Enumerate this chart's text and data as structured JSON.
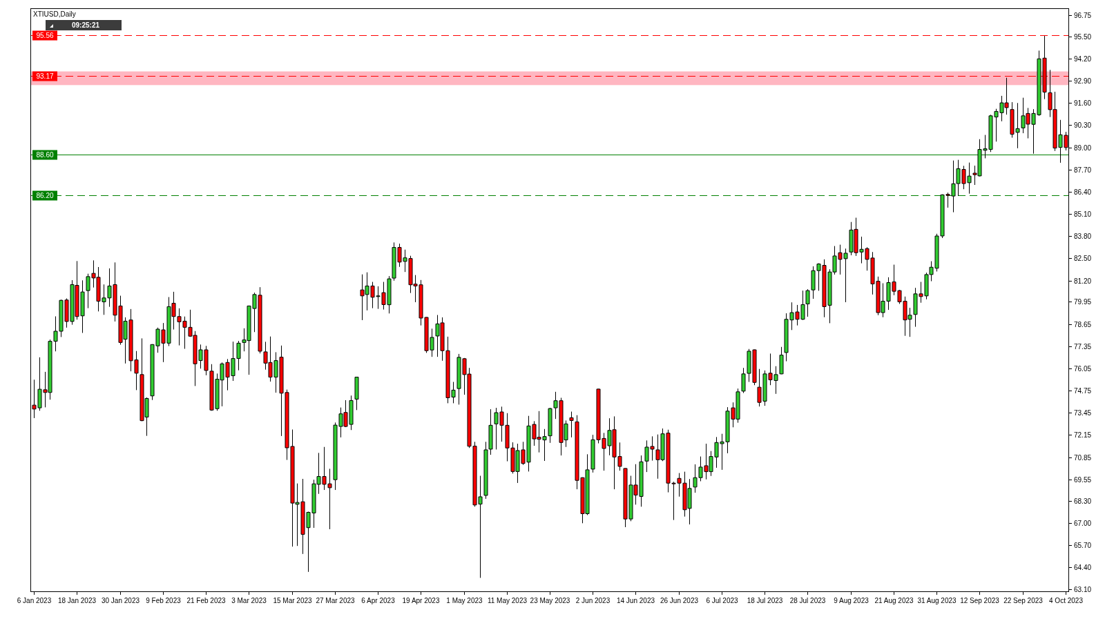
{
  "chart_data": {
    "type": "candlestick",
    "title": "XTIUSD,Daily",
    "categories": [
      "6 Jan 2023",
      null,
      null,
      null,
      null,
      null,
      null,
      null,
      "18 Jan 2023",
      null,
      null,
      null,
      null,
      null,
      null,
      null,
      "30 Jan 2023",
      null,
      null,
      null,
      null,
      null,
      null,
      null,
      "9 Feb 2023",
      null,
      null,
      null,
      null,
      null,
      null,
      null,
      "21 Feb 2023",
      null,
      null,
      null,
      null,
      null,
      null,
      null,
      "3 Mar 2023",
      null,
      null,
      null,
      null,
      null,
      null,
      null,
      "15 Mar 2023",
      null,
      null,
      null,
      null,
      null,
      null,
      null,
      "27 Mar 2023",
      null,
      null,
      null,
      null,
      null,
      null,
      null,
      "6 Apr 2023",
      null,
      null,
      null,
      null,
      null,
      null,
      null,
      "19 Apr 2023",
      null,
      null,
      null,
      null,
      null,
      null,
      null,
      "1 May 2023",
      null,
      null,
      null,
      null,
      null,
      null,
      null,
      "11 May 2023",
      null,
      null,
      null,
      null,
      null,
      null,
      null,
      "23 May 2023",
      null,
      null,
      null,
      null,
      null,
      null,
      null,
      "2 Jun 2023",
      null,
      null,
      null,
      null,
      null,
      null,
      null,
      "14 Jun 2023",
      null,
      null,
      null,
      null,
      null,
      null,
      null,
      "26 Jun 2023",
      null,
      null,
      null,
      null,
      null,
      null,
      null,
      "6 Jul 2023",
      null,
      null,
      null,
      null,
      null,
      null,
      null,
      "18 Jul 2023",
      null,
      null,
      null,
      null,
      null,
      null,
      null,
      "28 Jul 2023",
      null,
      null,
      null,
      null,
      null,
      null,
      null,
      "9 Aug 2023",
      null,
      null,
      null,
      null,
      null,
      null,
      null,
      "21 Aug 2023",
      null,
      null,
      null,
      null,
      null,
      null,
      null,
      "31 Aug 2023",
      null,
      null,
      null,
      null,
      null,
      null,
      null,
      "12 Sep 2023",
      null,
      null,
      null,
      null,
      null,
      null,
      null,
      "22 Sep 2023",
      null,
      null,
      null,
      null,
      null,
      null,
      null,
      "4 Oct 2023"
    ],
    "ohlc": [
      [
        73.9,
        75.39,
        73.14,
        73.67
      ],
      [
        73.74,
        76.7,
        73.57,
        74.83
      ],
      [
        74.8,
        75.85,
        73.77,
        74.64
      ],
      [
        74.64,
        77.74,
        74.22,
        77.64
      ],
      [
        77.64,
        79.1,
        77.05,
        78.23
      ],
      [
        78.23,
        80.08,
        77.89,
        80.04
      ],
      [
        80.06,
        80.15,
        78.44,
        78.8
      ],
      [
        78.8,
        81.22,
        78.61,
        80.96
      ],
      [
        80.92,
        82.34,
        78.91,
        79.09
      ],
      [
        79.13,
        81.21,
        78.13,
        80.53
      ],
      [
        80.61,
        81.6,
        79.58,
        81.43
      ],
      [
        81.62,
        82.38,
        80.79,
        81.35
      ],
      [
        81.39,
        81.99,
        79.39,
        79.99
      ],
      [
        79.95,
        80.97,
        79.19,
        80.18
      ],
      [
        80.18,
        81.91,
        79.66,
        80.88
      ],
      [
        80.96,
        82.26,
        78.8,
        79.17
      ],
      [
        79.71,
        80.31,
        77.44,
        77.57
      ],
      [
        77.76,
        79.04,
        76.34,
        78.82
      ],
      [
        78.89,
        79.53,
        75.88,
        76.5
      ],
      [
        76.55,
        77.07,
        74.78,
        75.77
      ],
      [
        75.69,
        77.81,
        72.96,
        72.99
      ],
      [
        73.2,
        74.35,
        72.1,
        74.29
      ],
      [
        74.44,
        77.47,
        74.2,
        77.45
      ],
      [
        77.37,
        78.44,
        76.97,
        78.35
      ],
      [
        78.31,
        78.71,
        76.42,
        77.53
      ],
      [
        77.53,
        80.23,
        77.36,
        79.67
      ],
      [
        79.87,
        80.54,
        78.33,
        79.09
      ],
      [
        79.09,
        79.57,
        77.4,
        78.78
      ],
      [
        78.82,
        79.09,
        77.2,
        78.46
      ],
      [
        78.46,
        79.49,
        77.9,
        77.94
      ],
      [
        77.99,
        78.24,
        75.02,
        76.32
      ],
      [
        76.51,
        77.45,
        76.04,
        77.14
      ],
      [
        77.14,
        77.37,
        75.65,
        75.93
      ],
      [
        75.89,
        76.3,
        73.57,
        73.61
      ],
      [
        73.69,
        75.75,
        73.57,
        75.42
      ],
      [
        75.37,
        76.4,
        73.83,
        76.32
      ],
      [
        76.4,
        76.6,
        74.77,
        75.54
      ],
      [
        75.62,
        77.62,
        75.32,
        76.63
      ],
      [
        76.63,
        77.66,
        75.94,
        77.53
      ],
      [
        77.57,
        78.4,
        77.05,
        77.72
      ],
      [
        77.68,
        79.73,
        75.68,
        79.71
      ],
      [
        79.56,
        80.49,
        78.18,
        80.38
      ],
      [
        80.34,
        80.81,
        76.93,
        77.06
      ],
      [
        77.02,
        77.61,
        75.98,
        76.36
      ],
      [
        76.4,
        77.92,
        75.28,
        75.54
      ],
      [
        75.54,
        77.0,
        74.63,
        76.51
      ],
      [
        76.71,
        77.39,
        72.09,
        74.6
      ],
      [
        74.64,
        74.81,
        70.69,
        71.4
      ],
      [
        71.48,
        72.47,
        65.61,
        68.16
      ],
      [
        68.09,
        69.31,
        65.65,
        68.2
      ],
      [
        68.24,
        69.58,
        65.18,
        66.33
      ],
      [
        66.72,
        67.66,
        64.13,
        67.62
      ],
      [
        67.58,
        69.53,
        66.71,
        69.29
      ],
      [
        69.26,
        71.1,
        68.7,
        69.72
      ],
      [
        69.72,
        71.45,
        68.93,
        69.26
      ],
      [
        69.29,
        70.17,
        66.63,
        69.06
      ],
      [
        69.53,
        72.88,
        68.93,
        72.73
      ],
      [
        72.65,
        73.76,
        72.01,
        73.39
      ],
      [
        73.47,
        74.19,
        72.61,
        72.65
      ],
      [
        72.77,
        74.46,
        72.44,
        74.17
      ],
      [
        74.25,
        75.56,
        73.61,
        75.54
      ],
      [
        80.65,
        81.56,
        78.88,
        80.3
      ],
      [
        80.38,
        81.68,
        79.45,
        80.88
      ],
      [
        80.88,
        81.12,
        79.58,
        80.22
      ],
      [
        80.3,
        80.86,
        79.54,
        80.3
      ],
      [
        80.49,
        81.12,
        79.5,
        79.79
      ],
      [
        79.78,
        81.46,
        79.27,
        81.3
      ],
      [
        81.34,
        83.43,
        81.19,
        83.14
      ],
      [
        83.14,
        83.36,
        82.0,
        82.28
      ],
      [
        82.32,
        83.01,
        81.7,
        82.53
      ],
      [
        82.49,
        82.65,
        80.47,
        80.95
      ],
      [
        80.99,
        81.52,
        79.93,
        80.88
      ],
      [
        80.95,
        81.23,
        78.57,
        79.0
      ],
      [
        79.04,
        79.06,
        76.96,
        77.09
      ],
      [
        77.13,
        78.38,
        76.73,
        77.87
      ],
      [
        77.95,
        79.18,
        76.73,
        78.66
      ],
      [
        78.72,
        79.04,
        76.5,
        77.09
      ],
      [
        77.09,
        77.91,
        74.01,
        74.33
      ],
      [
        74.37,
        75.26,
        74.01,
        74.78
      ],
      [
        74.87,
        76.9,
        73.93,
        76.7
      ],
      [
        76.62,
        76.66,
        74.51,
        75.69
      ],
      [
        75.72,
        76.08,
        71.39,
        71.49
      ],
      [
        71.5,
        71.75,
        67.95,
        68.05
      ],
      [
        68.1,
        69.76,
        63.78,
        68.53
      ],
      [
        68.61,
        71.75,
        68.41,
        71.28
      ],
      [
        71.32,
        73.66,
        70.99,
        72.72
      ],
      [
        72.8,
        73.74,
        71.3,
        73.46
      ],
      [
        73.5,
        73.81,
        71.76,
        72.72
      ],
      [
        72.72,
        73.43,
        70.61,
        71.39
      ],
      [
        71.39,
        71.72,
        69.89,
        70.01
      ],
      [
        70.01,
        71.64,
        69.34,
        71.24
      ],
      [
        71.28,
        71.75,
        70.4,
        70.48
      ],
      [
        70.56,
        73.27,
        70.01,
        72.68
      ],
      [
        72.77,
        72.96,
        71.52,
        71.92
      ],
      [
        72.02,
        73.55,
        71.13,
        71.9
      ],
      [
        71.86,
        72.5,
        70.63,
        72.06
      ],
      [
        72.1,
        73.74,
        71.69,
        73.7
      ],
      [
        73.74,
        74.68,
        73.09,
        74.16
      ],
      [
        74.16,
        74.33,
        70.95,
        71.71
      ],
      [
        71.86,
        73.0,
        71.45,
        72.8
      ],
      [
        73.16,
        73.52,
        72.01,
        73.0
      ],
      [
        72.92,
        73.31,
        68.97,
        69.49
      ],
      [
        69.65,
        69.67,
        66.98,
        67.54
      ],
      [
        67.54,
        71.02,
        67.46,
        70.11
      ],
      [
        70.15,
        72.16,
        69.95,
        71.87
      ],
      [
        74.84,
        74.86,
        71.66,
        71.87
      ],
      [
        71.95,
        72.27,
        70.06,
        71.36
      ],
      [
        71.52,
        73.13,
        70.96,
        72.42
      ],
      [
        72.46,
        73.24,
        68.97,
        70.86
      ],
      [
        70.89,
        71.71,
        70.06,
        70.31
      ],
      [
        70.19,
        70.21,
        66.75,
        67.23
      ],
      [
        67.23,
        69.76,
        67.1,
        69.22
      ],
      [
        69.22,
        70.44,
        68.07,
        68.63
      ],
      [
        68.55,
        70.95,
        67.95,
        70.58
      ],
      [
        70.62,
        71.83,
        69.98,
        71.44
      ],
      [
        71.48,
        72.07,
        70.65,
        71.32
      ],
      [
        71.28,
        72.18,
        69.59,
        70.7
      ],
      [
        70.7,
        72.53,
        70.62,
        72.22
      ],
      [
        72.26,
        72.46,
        68.79,
        69.33
      ],
      [
        69.33,
        69.41,
        67.17,
        69.32
      ],
      [
        69.61,
        69.92,
        68.54,
        69.33
      ],
      [
        69.33,
        70.0,
        67.37,
        67.77
      ],
      [
        67.85,
        69.57,
        66.91,
        69.02
      ],
      [
        69.1,
        70.43,
        68.77,
        69.65
      ],
      [
        69.65,
        70.89,
        69.44,
        70.27
      ],
      [
        70.35,
        71.64,
        69.55,
        70.0
      ],
      [
        70.0,
        71.21,
        69.75,
        70.89
      ],
      [
        70.86,
        72.03,
        70.23,
        71.71
      ],
      [
        71.64,
        72.22,
        70.11,
        71.75
      ],
      [
        71.75,
        73.78,
        71.08,
        73.55
      ],
      [
        73.74,
        74.06,
        72.6,
        73.08
      ],
      [
        73.08,
        74.87,
        72.87,
        74.68
      ],
      [
        74.72,
        76.08,
        74.61,
        75.73
      ],
      [
        75.76,
        77.19,
        75.26,
        77.06
      ],
      [
        77.14,
        77.16,
        75.07,
        75.23
      ],
      [
        74.95,
        76.02,
        73.82,
        74.06
      ],
      [
        74.13,
        75.93,
        73.86,
        75.73
      ],
      [
        75.77,
        76.92,
        75.07,
        75.38
      ],
      [
        75.34,
        76.18,
        74.56,
        75.69
      ],
      [
        75.73,
        77.31,
        75.71,
        76.83
      ],
      [
        76.98,
        79.28,
        76.47,
        78.93
      ],
      [
        78.89,
        79.92,
        78.3,
        79.32
      ],
      [
        79.36,
        79.77,
        78.57,
        78.93
      ],
      [
        78.93,
        80.61,
        78.89,
        79.79
      ],
      [
        79.83,
        80.69,
        79.08,
        80.61
      ],
      [
        80.65,
        82.03,
        80.13,
        81.78
      ],
      [
        81.78,
        82.21,
        80.6,
        82.17
      ],
      [
        82.09,
        82.44,
        79.05,
        79.67
      ],
      [
        79.75,
        81.86,
        78.7,
        81.7
      ],
      [
        81.7,
        83.22,
        81.55,
        82.64
      ],
      [
        82.83,
        83.3,
        81.55,
        82.44
      ],
      [
        82.48,
        83.07,
        79.93,
        82.8
      ],
      [
        82.87,
        84.63,
        82.68,
        84.16
      ],
      [
        84.2,
        84.88,
        82.64,
        82.83
      ],
      [
        82.87,
        83.77,
        82.21,
        83.03
      ],
      [
        83.07,
        83.15,
        81.78,
        82.44
      ],
      [
        82.52,
        82.87,
        80.38,
        81.0
      ],
      [
        81.16,
        81.43,
        79.17,
        79.32
      ],
      [
        79.32,
        81.04,
        79.05,
        79.99
      ],
      [
        79.99,
        81.39,
        79.48,
        81.08
      ],
      [
        81.12,
        82.13,
        80.34,
        80.57
      ],
      [
        80.61,
        80.65,
        79.83,
        79.95
      ],
      [
        79.99,
        80.26,
        77.96,
        78.89
      ],
      [
        78.93,
        79.6,
        77.9,
        79.17
      ],
      [
        79.21,
        80.77,
        78.49,
        80.42
      ],
      [
        80.42,
        81.12,
        79.9,
        80.26
      ],
      [
        80.3,
        81.66,
        80.1,
        81.55
      ],
      [
        81.55,
        82.33,
        81.16,
        81.98
      ],
      [
        81.92,
        83.94,
        81.73,
        83.81
      ],
      [
        83.81,
        86.25,
        83.69,
        86.22
      ],
      [
        86.25,
        86.35,
        85.47,
        86.19
      ],
      [
        86.15,
        88.23,
        85.2,
        86.87
      ],
      [
        86.88,
        88.27,
        86.16,
        87.75
      ],
      [
        87.71,
        87.92,
        86.55,
        86.88
      ],
      [
        86.93,
        88.11,
        86.29,
        87.32
      ],
      [
        87.49,
        87.93,
        86.8,
        87.4
      ],
      [
        87.33,
        89.48,
        87.3,
        88.88
      ],
      [
        88.83,
        89.73,
        88.36,
        88.92
      ],
      [
        88.88,
        90.91,
        88.73,
        90.85
      ],
      [
        90.78,
        91.26,
        89.34,
        91.11
      ],
      [
        91.03,
        92.02,
        90.53,
        91.61
      ],
      [
        91.61,
        93.08,
        90.92,
        91.33
      ],
      [
        91.22,
        91.65,
        89.57,
        89.77
      ],
      [
        89.88,
        91.6,
        88.95,
        90.1
      ],
      [
        90.14,
        91.91,
        89.83,
        90.85
      ],
      [
        90.99,
        91.31,
        89.53,
        90.36
      ],
      [
        90.35,
        91.24,
        88.63,
        90.99
      ],
      [
        90.91,
        94.67,
        90.85,
        94.19
      ],
      [
        94.23,
        95.53,
        91.83,
        92.24
      ],
      [
        92.2,
        93.54,
        90.78,
        91.21
      ],
      [
        91.22,
        92.26,
        88.79,
        88.96
      ],
      [
        89.0,
        90.61,
        88.1,
        89.74
      ],
      [
        89.71,
        89.91,
        88.82,
        88.99
      ]
    ],
    "colors": [
      "#ff0000",
      "#32cd32",
      "#ff0000",
      "#32cd32",
      "#32cd32",
      "#32cd32",
      "#ff0000",
      "#32cd32",
      "#ff0000",
      "#32cd32",
      "#32cd32",
      "#ff0000",
      "#ff0000",
      "#32cd32",
      "#32cd32",
      "#ff0000",
      "#ff0000",
      "#32cd32",
      "#ff0000",
      "#ff0000",
      "#ff0000",
      "#32cd32",
      "#32cd32",
      "#32cd32",
      "#ff0000",
      "#32cd32",
      "#ff0000",
      "#ff0000",
      "#ff0000",
      "#ff0000",
      "#ff0000",
      "#32cd32",
      "#ff0000",
      "#ff0000",
      "#32cd32",
      "#32cd32",
      "#ff0000",
      "#32cd32",
      "#32cd32",
      "#32cd32",
      "#32cd32",
      "#32cd32",
      "#ff0000",
      "#ff0000",
      "#ff0000",
      "#32cd32",
      "#ff0000",
      "#ff0000",
      "#ff0000",
      "#32cd32",
      "#ff0000",
      "#32cd32",
      "#32cd32",
      "#32cd32",
      "#ff0000",
      "#ff0000",
      "#32cd32",
      "#32cd32",
      "#ff0000",
      "#32cd32",
      "#32cd32",
      "#ff0000",
      "#32cd32",
      "#ff0000",
      "#32cd32",
      "#ff0000",
      "#32cd32",
      "#32cd32",
      "#ff0000",
      "#32cd32",
      "#ff0000",
      "#ff0000",
      "#ff0000",
      "#ff0000",
      "#32cd32",
      "#32cd32",
      "#ff0000",
      "#ff0000",
      "#32cd32",
      "#32cd32",
      "#ff0000",
      "#ff0000",
      "#ff0000",
      "#32cd32",
      "#32cd32",
      "#32cd32",
      "#32cd32",
      "#ff0000",
      "#ff0000",
      "#ff0000",
      "#32cd32",
      "#ff0000",
      "#32cd32",
      "#ff0000",
      "#ff0000",
      "#32cd32",
      "#32cd32",
      "#32cd32",
      "#ff0000",
      "#32cd32",
      "#ff0000",
      "#ff0000",
      "#ff0000",
      "#32cd32",
      "#32cd32",
      "#ff0000",
      "#ff0000",
      "#32cd32",
      "#ff0000",
      "#ff0000",
      "#ff0000",
      "#32cd32",
      "#ff0000",
      "#32cd32",
      "#32cd32",
      "#ff0000",
      "#ff0000",
      "#32cd32",
      "#ff0000",
      "#ff0000",
      "#ff0000",
      "#ff0000",
      "#32cd32",
      "#32cd32",
      "#32cd32",
      "#ff0000",
      "#32cd32",
      "#32cd32",
      "#32cd32",
      "#32cd32",
      "#ff0000",
      "#32cd32",
      "#32cd32",
      "#32cd32",
      "#ff0000",
      "#ff0000",
      "#32cd32",
      "#ff0000",
      "#32cd32",
      "#32cd32",
      "#32cd32",
      "#32cd32",
      "#ff0000",
      "#32cd32",
      "#32cd32",
      "#32cd32",
      "#32cd32",
      "#ff0000",
      "#32cd32",
      "#32cd32",
      "#ff0000",
      "#32cd32",
      "#32cd32",
      "#ff0000",
      "#32cd32",
      "#ff0000",
      "#ff0000",
      "#ff0000",
      "#32cd32",
      "#32cd32",
      "#ff0000",
      "#ff0000",
      "#ff0000",
      "#32cd32",
      "#32cd32",
      "#ff0000",
      "#32cd32",
      "#32cd32",
      "#32cd32",
      "#32cd32",
      "#ff0000",
      "#32cd32",
      "#32cd32",
      "#ff0000",
      "#32cd32",
      "#ff0000",
      "#32cd32",
      "#32cd32",
      "#32cd32",
      "#32cd32",
      "#32cd32",
      "#ff0000",
      "#ff0000",
      "#32cd32",
      "#32cd32",
      "#ff0000",
      "#32cd32",
      "#32cd32",
      "#ff0000",
      "#ff0000",
      "#ff0000",
      "#32cd32",
      "#ff0000"
    ],
    "ylim": [
      62.95,
      97.15
    ],
    "yticks": [
      {
        "value": 63.1,
        "label": "63.10"
      },
      {
        "value": 64.4,
        "label": "64.40"
      },
      {
        "value": 65.7,
        "label": "65.70"
      },
      {
        "value": 67,
        "label": "67.00"
      },
      {
        "value": 68.3,
        "label": "68.30"
      },
      69.55,
      70.85,
      72.15,
      73.45,
      74.75,
      76.05,
      77.35,
      78.65,
      79.95,
      {
        "value": 81.2,
        "label": "81.20"
      },
      {
        "value": 82.5,
        "label": "82.50"
      },
      {
        "value": 83.8,
        "label": "83.80"
      },
      {
        "value": 85.1,
        "label": "85.10"
      },
      {
        "value": 86.4,
        "label": "86.40"
      },
      {
        "value": 87.7,
        "label": "87.70"
      },
      {
        "value": 89,
        "label": "89.00"
      },
      {
        "value": 90.3,
        "label": "90.30"
      },
      {
        "value": 91.6,
        "label": "91.60"
      },
      {
        "value": 92.9,
        "label": "92.90"
      },
      {
        "value": 94.2,
        "label": "94.20"
      },
      {
        "value": 95.5,
        "label": "95.50"
      },
      96.75
    ],
    "ref_lines": [
      {
        "axis": "y",
        "value": 95.56,
        "label": "95.56",
        "color": "#ff0000",
        "line_style": "dashed"
      },
      {
        "axis": "y",
        "value": 93.17,
        "label": "93.17",
        "color": "#ff0000",
        "line_style": "dashed"
      },
      {
        "axis": "y",
        "value": 88.6,
        "label": "88.60",
        "color": "#008000",
        "line_style": "solid"
      },
      {
        "axis": "y",
        "value": 86.2,
        "label": "86.20",
        "color": "#008000",
        "line_style": "dashed"
      }
    ],
    "bands": [
      {
        "axis": "y",
        "from": 92.65,
        "to": 93.45,
        "color": "#ffb6c1"
      }
    ],
    "annotations": [
      "09:25:21"
    ]
  }
}
